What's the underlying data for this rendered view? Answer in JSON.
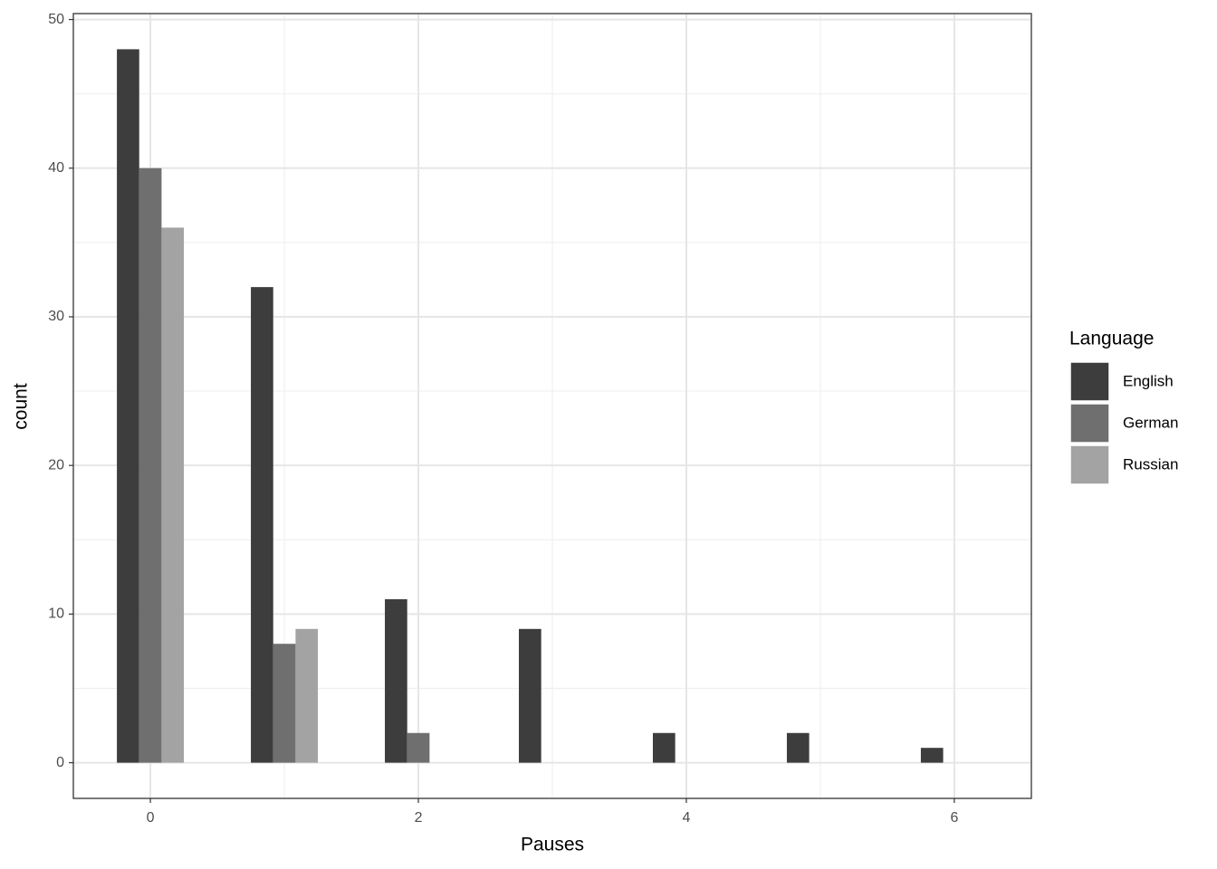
{
  "chart_data": {
    "type": "bar",
    "x_label": "Pauses",
    "y_label": "count",
    "x": [
      0,
      1,
      2,
      3,
      4,
      5,
      6
    ],
    "series": [
      {
        "name": "English",
        "color": "#3d3d3d",
        "values": [
          48,
          32,
          11,
          9,
          2,
          2,
          1
        ]
      },
      {
        "name": "German",
        "color": "#6f6f6f",
        "values": [
          40,
          8,
          2,
          null,
          null,
          null,
          null
        ]
      },
      {
        "name": "Russian",
        "color": "#a3a3a3",
        "values": [
          36,
          9,
          null,
          null,
          null,
          null,
          null
        ]
      }
    ],
    "legend_title": "Language",
    "legend": "right",
    "xlim": [
      -0.575,
      6.575
    ],
    "xticks": [
      0,
      2,
      4,
      6
    ],
    "ylim": [
      -2.4,
      50.4
    ],
    "yticks": [
      0,
      10,
      20,
      30,
      40,
      50
    ],
    "grid": true
  }
}
